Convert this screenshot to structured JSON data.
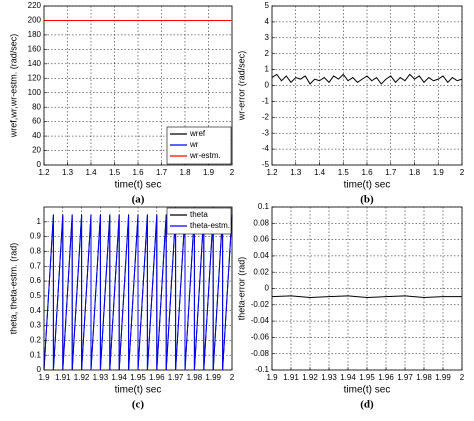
{
  "chart_data": [
    {
      "type": "line",
      "caption": "(a)",
      "xlabel": "time(t) sec",
      "ylabel": "wref,wr,wr-estm. (rad/sec)",
      "xlim": [
        1.2,
        2
      ],
      "xticks": [
        1.2,
        1.3,
        1.4,
        1.5,
        1.6,
        1.7,
        1.8,
        1.9,
        2
      ],
      "ylim": [
        0,
        220
      ],
      "yticks": [
        0,
        20,
        40,
        60,
        80,
        100,
        120,
        140,
        160,
        180,
        200,
        220
      ],
      "grid": true,
      "legend": "lower right",
      "x": [
        1.2,
        2
      ],
      "series": [
        {
          "name": "wref",
          "color": "#000000",
          "values": [
            200,
            200
          ]
        },
        {
          "name": "wr",
          "color": "#0000ff",
          "values": [
            200,
            200
          ]
        },
        {
          "name": "wr-estm.",
          "color": "#ff0000",
          "values": [
            200,
            200
          ]
        }
      ]
    },
    {
      "type": "line",
      "caption": "(b)",
      "xlabel": "time(t) sec",
      "ylabel": "wr-error (rad/sec)",
      "xlim": [
        1.2,
        2
      ],
      "xticks": [
        1.2,
        1.3,
        1.4,
        1.5,
        1.6,
        1.7,
        1.8,
        1.9,
        2
      ],
      "ylim": [
        -5,
        5
      ],
      "yticks": [
        -5,
        -4,
        -3,
        -2,
        -1,
        0,
        1,
        2,
        3,
        4,
        5
      ],
      "grid": true,
      "x": [
        1.2,
        1.22,
        1.24,
        1.26,
        1.28,
        1.3,
        1.32,
        1.34,
        1.36,
        1.38,
        1.4,
        1.42,
        1.44,
        1.46,
        1.48,
        1.5,
        1.52,
        1.54,
        1.56,
        1.58,
        1.6,
        1.62,
        1.64,
        1.66,
        1.68,
        1.7,
        1.72,
        1.74,
        1.76,
        1.78,
        1.8,
        1.82,
        1.84,
        1.86,
        1.88,
        1.9,
        1.92,
        1.94,
        1.96,
        1.98,
        2
      ],
      "series": [
        {
          "color": "#000000",
          "values": [
            0.5,
            0.7,
            0.3,
            0.6,
            0.2,
            0.5,
            0.4,
            0.6,
            0.1,
            0.4,
            0.3,
            0.5,
            0.2,
            0.6,
            0.4,
            0.7,
            0.3,
            0.5,
            0.2,
            0.4,
            0.6,
            0.3,
            0.5,
            0.1,
            0.4,
            0.6,
            0.2,
            0.5,
            0.3,
            0.7,
            0.4,
            0.6,
            0.2,
            0.5,
            0.3,
            0.4,
            0.6,
            0.2,
            0.5,
            0.3,
            0.4
          ]
        }
      ]
    },
    {
      "type": "line",
      "caption": "(c)",
      "xlabel": "time(t) sec",
      "ylabel": "theta, theta-estm. (rad)",
      "xlim": [
        1.9,
        2
      ],
      "xticks": [
        1.9,
        1.91,
        1.92,
        1.93,
        1.94,
        1.95,
        1.96,
        1.97,
        1.98,
        1.99,
        2
      ],
      "ylim": [
        0,
        1.1
      ],
      "yticks": [
        0,
        0.1,
        0.2,
        0.3,
        0.4,
        0.5,
        0.6,
        0.7,
        0.8,
        0.9,
        1
      ],
      "grid": true,
      "legend": "upper right",
      "x": [
        1.9,
        1.905,
        1.905,
        1.91,
        1.91,
        1.915,
        1.915,
        1.92,
        1.92,
        1.925,
        1.925,
        1.93,
        1.93,
        1.935,
        1.935,
        1.94,
        1.94,
        1.945,
        1.945,
        1.95,
        1.95,
        1.955,
        1.955,
        1.96,
        1.96,
        1.965,
        1.965,
        1.97,
        1.97,
        1.975,
        1.975,
        1.98,
        1.98,
        1.985,
        1.985,
        1.99,
        1.99,
        1.995,
        1.995,
        2
      ],
      "series": [
        {
          "name": "theta",
          "color": "#000000",
          "values": [
            0,
            1.05,
            0,
            1.05,
            0,
            1.05,
            0,
            1.05,
            0,
            1.05,
            0,
            1.05,
            0,
            1.05,
            0,
            1.05,
            0,
            1.05,
            0,
            1.05,
            0,
            1.05,
            0,
            1.05,
            0,
            1.05,
            0,
            1.05,
            0,
            1.05,
            0,
            1.05,
            0,
            1.05,
            0,
            1.05,
            0,
            1.05,
            0,
            1.05
          ]
        },
        {
          "name": "theta-estm.",
          "color": "#0000ff",
          "values": [
            0,
            1.04,
            0,
            1.04,
            0,
            1.04,
            0,
            1.04,
            0,
            1.04,
            0,
            1.04,
            0,
            1.04,
            0,
            1.04,
            0,
            1.04,
            0,
            1.04,
            0,
            1.04,
            0,
            1.04,
            0,
            1.04,
            0,
            1.04,
            0,
            1.04,
            0,
            1.04,
            0,
            1.04,
            0,
            1.04,
            0,
            1.04,
            0,
            1.04
          ]
        }
      ]
    },
    {
      "type": "line",
      "caption": "(d)",
      "xlabel": "time(t) sec",
      "ylabel": "theta-error (rad)",
      "xlim": [
        1.9,
        2
      ],
      "xticks": [
        1.9,
        1.91,
        1.92,
        1.93,
        1.94,
        1.95,
        1.96,
        1.97,
        1.98,
        1.99,
        2
      ],
      "ylim": [
        -0.1,
        0.1
      ],
      "yticks": [
        -0.1,
        -0.08,
        -0.06,
        -0.04,
        -0.02,
        0,
        0.02,
        0.04,
        0.06,
        0.08,
        0.1
      ],
      "grid": true,
      "x": [
        1.9,
        1.91,
        1.92,
        1.93,
        1.94,
        1.95,
        1.96,
        1.97,
        1.98,
        1.99,
        2
      ],
      "series": [
        {
          "color": "#000000",
          "values": [
            -0.01,
            -0.009,
            -0.011,
            -0.01,
            -0.009,
            -0.011,
            -0.01,
            -0.009,
            -0.011,
            -0.01,
            -0.01
          ]
        }
      ]
    }
  ]
}
